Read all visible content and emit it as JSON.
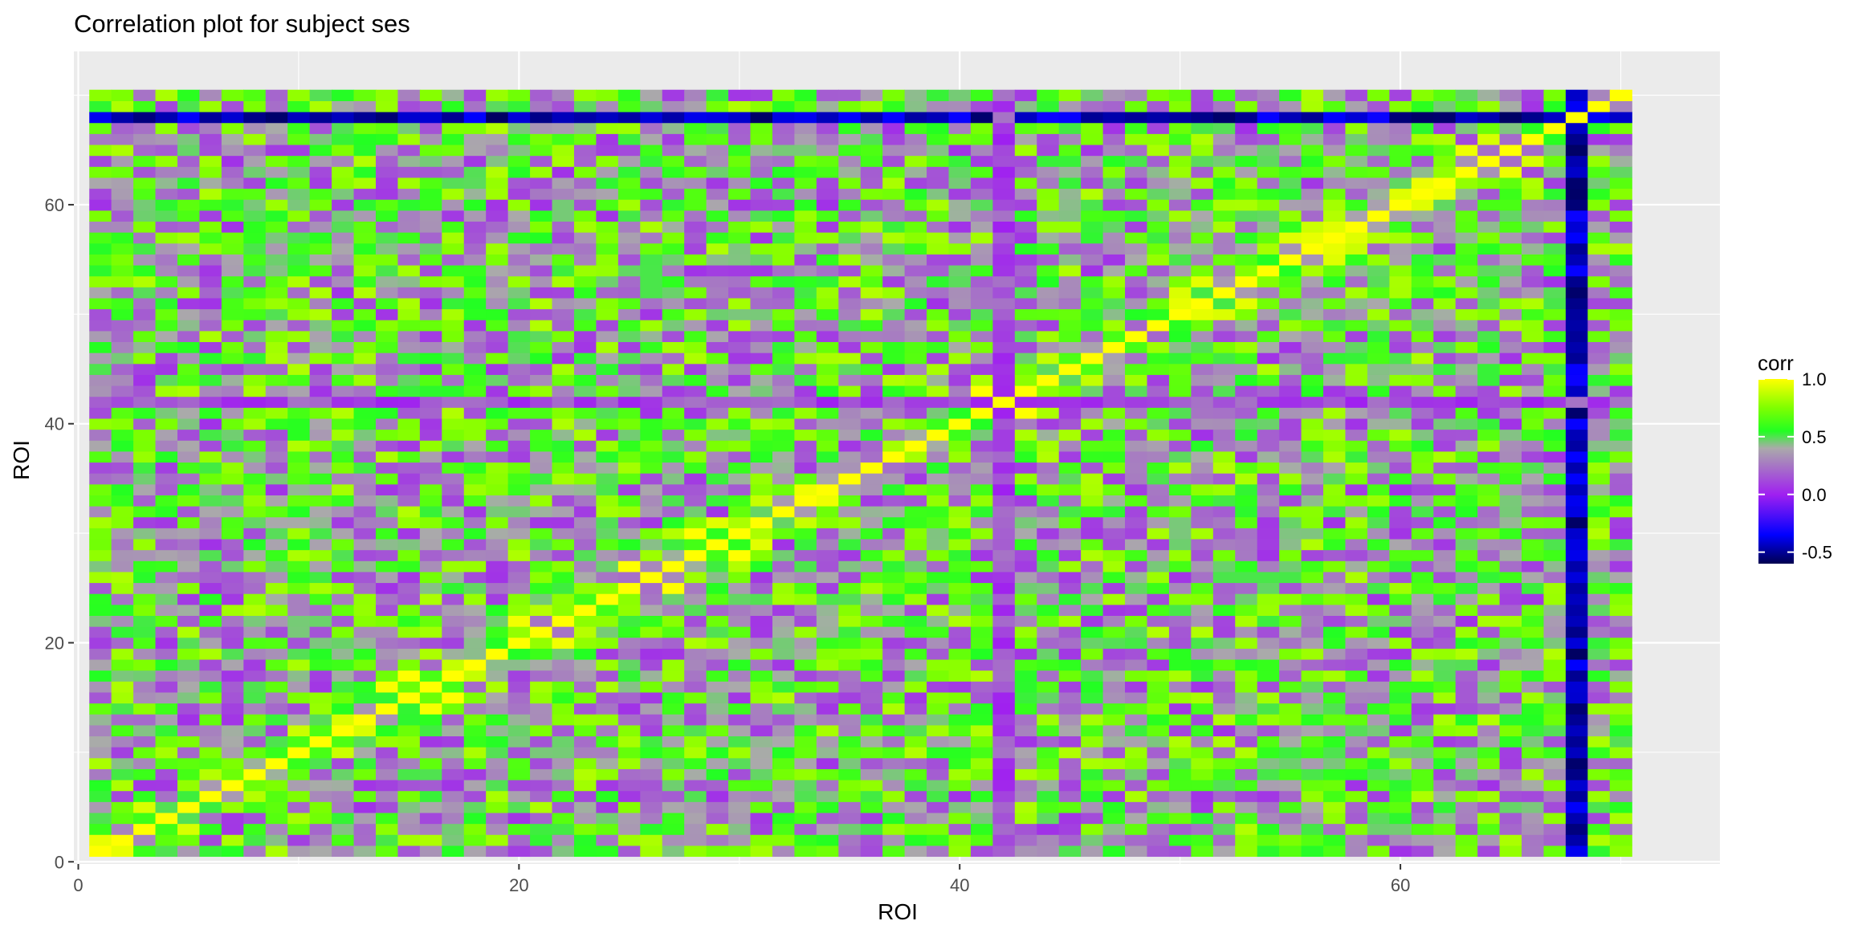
{
  "chart_data": {
    "type": "heatmap",
    "title": "Correlation plot for subject ses",
    "xlabel": "ROI",
    "ylabel": "ROI",
    "n": 70,
    "xlim": [
      -0.2,
      74.5
    ],
    "ylim": [
      -0.2,
      74.0
    ],
    "x_ticks": [
      0,
      20,
      40,
      60
    ],
    "y_ticks": [
      0,
      20,
      40,
      60
    ],
    "grid": "on",
    "value_range": [
      -0.6,
      1.0
    ],
    "color_scale": [
      {
        "value": -0.6,
        "color": "#000050"
      },
      {
        "value": -0.35,
        "color": "#0000ff"
      },
      {
        "value": 0.0,
        "color": "#a020f0"
      },
      {
        "value": 0.4,
        "color": "#aaaaaa"
      },
      {
        "value": 0.55,
        "color": "#22ff22"
      },
      {
        "value": 0.75,
        "color": "#7fff00"
      },
      {
        "value": 1.0,
        "color": "#ffff00"
      }
    ],
    "special_rois": [
      {
        "roi": 68,
        "mean_corr": -0.45
      },
      {
        "roi": 42,
        "mean_corr": 0.12
      }
    ],
    "legend": {
      "title": "corr",
      "position": "right",
      "breaks": [
        1.0,
        0.5,
        0.0,
        -0.5
      ],
      "break_labels": [
        "1.0",
        "0.5",
        "0.0",
        "-0.5"
      ]
    }
  }
}
